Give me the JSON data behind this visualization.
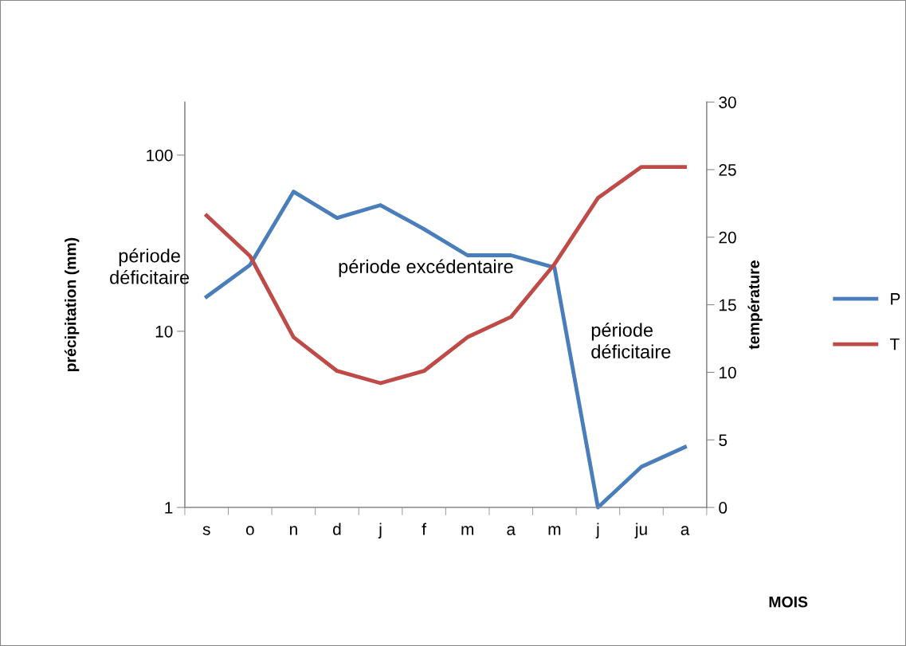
{
  "chart_data": {
    "type": "line",
    "xlabel": "MOIS",
    "ylabel": "précipitation (mm)",
    "y2label": "température",
    "categories": [
      "s",
      "o",
      "n",
      "d",
      "j",
      "f",
      "m",
      "a",
      "m",
      "j",
      "ju",
      "a"
    ],
    "series": [
      {
        "name": "P",
        "color": "#4a7ebb",
        "values": [
          15.7,
          23.8,
          62,
          44,
          52,
          38,
          27,
          27,
          23,
          1,
          1.7,
          2.2
        ]
      },
      {
        "name": "T",
        "color": "#be4b48",
        "axis": "y2",
        "values": [
          21.6,
          18.6,
          12.6,
          10.1,
          9.2,
          10.1,
          12.6,
          14.1,
          18.0,
          22.9,
          25.2,
          25.2
        ]
      }
    ],
    "log": "y",
    "ylim": [
      1,
      200
    ],
    "yticks": [
      1,
      10,
      100
    ],
    "y2lim": [
      0,
      30
    ],
    "y2ticks": [
      0,
      5,
      10,
      15,
      20,
      25,
      30
    ],
    "annotations": [
      "période\ndéficitaire",
      "période excédentaire",
      "période\ndéficitaire"
    ],
    "legend": "right",
    "grid": false,
    "marker": "none",
    "line_style": "solid"
  }
}
